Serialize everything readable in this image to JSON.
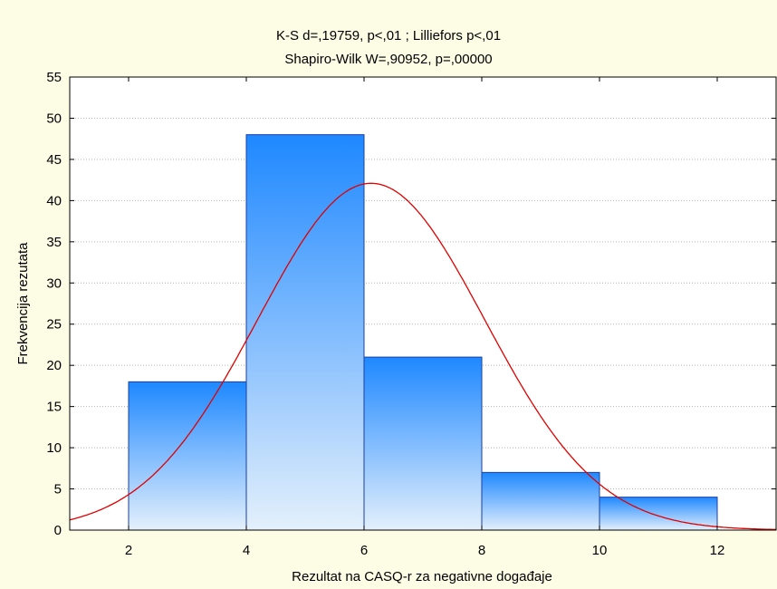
{
  "chart_data": {
    "type": "bar",
    "title": "K-S d=,19759, p<,01 ; Lilliefors p<,01",
    "subtitle": "Shapiro-Wilk W=,90952, p=,00000",
    "xlabel": "Rezultat na CASQ-r za negativne događaje",
    "ylabel": "Frekvencija rezutata",
    "xlim": [
      1,
      13
    ],
    "ylim": [
      0,
      55
    ],
    "xticks": [
      2,
      4,
      6,
      8,
      10,
      12
    ],
    "yticks": [
      0,
      5,
      10,
      15,
      20,
      25,
      30,
      35,
      40,
      45,
      50,
      55
    ],
    "grid": true,
    "bins": [
      {
        "x0": 2,
        "x1": 4,
        "value": 18
      },
      {
        "x0": 4,
        "x1": 6,
        "value": 48
      },
      {
        "x0": 6,
        "x1": 8,
        "value": 21
      },
      {
        "x0": 8,
        "x1": 10,
        "value": 7
      },
      {
        "x0": 10,
        "x1": 12,
        "value": 4
      }
    ],
    "normal_curve": {
      "mean": 6.12,
      "sd": 1.93,
      "peak": 42.1
    },
    "colors": {
      "bar_top": "#1e88ff",
      "bar_bottom": "#e4f0fc",
      "bar_edge": "#1a3fa8",
      "curve": "#e00000",
      "grid": "#b4b4b4",
      "plot_bg": "#ffffff",
      "page_bg": "#fdfde6"
    }
  }
}
